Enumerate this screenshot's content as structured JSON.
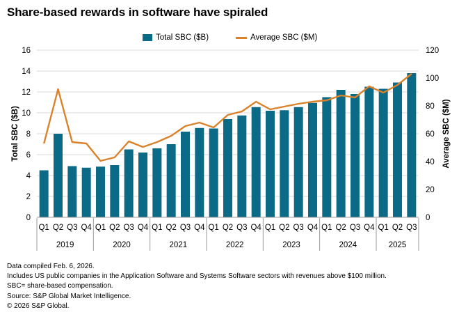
{
  "title": "Share-based rewards in software have spiraled",
  "colors": {
    "bar": "#0b6a86",
    "line": "#d9822b",
    "grid": "#d9d9d9"
  },
  "footnotes": [
    "Data compiled Feb. 6, 2026.",
    "Includes US public companies in the Application Software and Systems Software sectors with revenues above $100 million.",
    "SBC= share-based compensation.",
    "Source: S&P Global Market Intelligence.",
    "© 2026 S&P Global."
  ],
  "chart_data": {
    "type": "bar",
    "title": "Share-based rewards in software have spiraled",
    "categories": [
      "Q1",
      "Q2",
      "Q3",
      "Q4",
      "Q1",
      "Q2",
      "Q3",
      "Q4",
      "Q1",
      "Q2",
      "Q3",
      "Q4",
      "Q1",
      "Q2",
      "Q3",
      "Q4",
      "Q1",
      "Q2",
      "Q3",
      "Q4",
      "Q1",
      "Q2",
      "Q3",
      "Q4",
      "Q1",
      "Q2",
      "Q3"
    ],
    "years": [
      {
        "label": "2019",
        "count": 4
      },
      {
        "label": "2020",
        "count": 4
      },
      {
        "label": "2021",
        "count": 4
      },
      {
        "label": "2022",
        "count": 4
      },
      {
        "label": "2023",
        "count": 4
      },
      {
        "label": "2024",
        "count": 4
      },
      {
        "label": "2025",
        "count": 3
      }
    ],
    "series": [
      {
        "name": "Total SBC ($B)",
        "kind": "bar",
        "axis": "left",
        "values": [
          4.5,
          8.0,
          4.9,
          4.75,
          4.85,
          5.0,
          6.5,
          6.2,
          6.6,
          7.0,
          8.2,
          8.55,
          8.5,
          9.4,
          9.75,
          10.55,
          10.2,
          10.25,
          10.55,
          10.95,
          11.5,
          12.2,
          11.8,
          12.5,
          12.3,
          12.9,
          13.8
        ]
      },
      {
        "name": "Average SBC ($M)",
        "kind": "line",
        "axis": "right",
        "values": [
          53,
          92,
          54,
          53,
          40.5,
          43,
          54.5,
          50.5,
          54,
          58.5,
          65.5,
          68,
          64.5,
          73.5,
          76,
          83,
          77.5,
          79.5,
          81.5,
          83,
          84,
          87.5,
          86,
          94,
          89.5,
          95,
          103
        ]
      }
    ],
    "ylabel": "Total SBC ($B)",
    "y2label": "Average SBC ($M)",
    "ylim": [
      0,
      16
    ],
    "yticks": [
      0,
      2,
      4,
      6,
      8,
      10,
      12,
      14,
      16
    ],
    "y2lim": [
      0,
      120
    ],
    "y2ticks": [
      0,
      20,
      40,
      60,
      80,
      100,
      120
    ],
    "grid": true,
    "legend": "top-center"
  }
}
